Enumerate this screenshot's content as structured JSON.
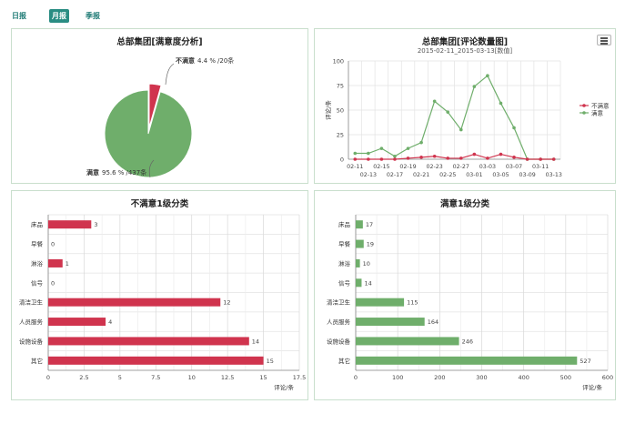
{
  "tabs": [
    {
      "label": "日报",
      "active": false
    },
    {
      "label": "月报",
      "active": true
    },
    {
      "label": "季报",
      "active": false
    }
  ],
  "colors": {
    "red": "#d0344e",
    "green": "#6fae6b",
    "grid": "#dddddd",
    "tab_active": "#2a8d83"
  },
  "icons": {
    "menu": "hamburger-menu-icon"
  },
  "chart_data": [
    {
      "type": "pie",
      "title": "总部集团[满意度分析]",
      "slices": [
        {
          "name": "不满意",
          "percent": 4.4,
          "count": 20,
          "pct_label": "4.4 %",
          "count_label": "20条",
          "color": "#d0344e"
        },
        {
          "name": "满意",
          "percent": 95.6,
          "count": 437,
          "pct_label": "95.6 %",
          "count_label": "437条",
          "color": "#6fae6b"
        }
      ]
    },
    {
      "type": "line",
      "title": "总部集团[评论数量图]",
      "subtitle": "2015-02-11_2015-03-13[数值]",
      "ylabel": "评论/条",
      "ylim": [
        0,
        100
      ],
      "yticks": [
        "0",
        "25",
        "50",
        "75",
        "100"
      ],
      "xticks_top": [
        "02-11",
        "02-15",
        "02-19",
        "02-23",
        "02-27",
        "03-03",
        "03-07",
        "03-11"
      ],
      "xticks_bottom": [
        "02-13",
        "02-17",
        "02-21",
        "02-25",
        "03-01",
        "03-05",
        "03-09",
        "03-13"
      ],
      "legend_position": "right",
      "series": [
        {
          "name": "不满意",
          "color": "#d0344e",
          "values": [
            0,
            0,
            0,
            0,
            1,
            2,
            3,
            1,
            1,
            5,
            1,
            5,
            2,
            0,
            0,
            0
          ]
        },
        {
          "name": "满意",
          "color": "#6fae6b",
          "values": [
            6,
            6,
            11,
            3,
            11,
            17,
            59,
            48,
            30,
            74,
            85,
            57,
            32,
            0,
            0,
            0
          ]
        }
      ]
    },
    {
      "type": "bar",
      "orientation": "horizontal",
      "title": "不满意1级分类",
      "categories": [
        "床品",
        "早餐",
        "淋浴",
        "信号",
        "清洁卫生",
        "人员服务",
        "设施设备",
        "其它"
      ],
      "values": [
        3,
        0,
        1,
        0,
        12,
        4,
        14,
        15
      ],
      "xlim": [
        0,
        17.5
      ],
      "xticks": [
        "0",
        "2.5",
        "5",
        "7.5",
        "10",
        "12.5",
        "15",
        "17.5"
      ],
      "xlabel": "评论/条",
      "color": "#d0344e"
    },
    {
      "type": "bar",
      "orientation": "horizontal",
      "title": "满意1级分类",
      "categories": [
        "床品",
        "早餐",
        "淋浴",
        "信号",
        "清洁卫生",
        "人员服务",
        "设施设备",
        "其它"
      ],
      "values": [
        17,
        19,
        10,
        14,
        115,
        164,
        246,
        527
      ],
      "xlim": [
        0,
        600
      ],
      "xticks": [
        "0",
        "100",
        "200",
        "300",
        "400",
        "500",
        "600"
      ],
      "xlabel": "评论/条",
      "color": "#6fae6b"
    }
  ]
}
